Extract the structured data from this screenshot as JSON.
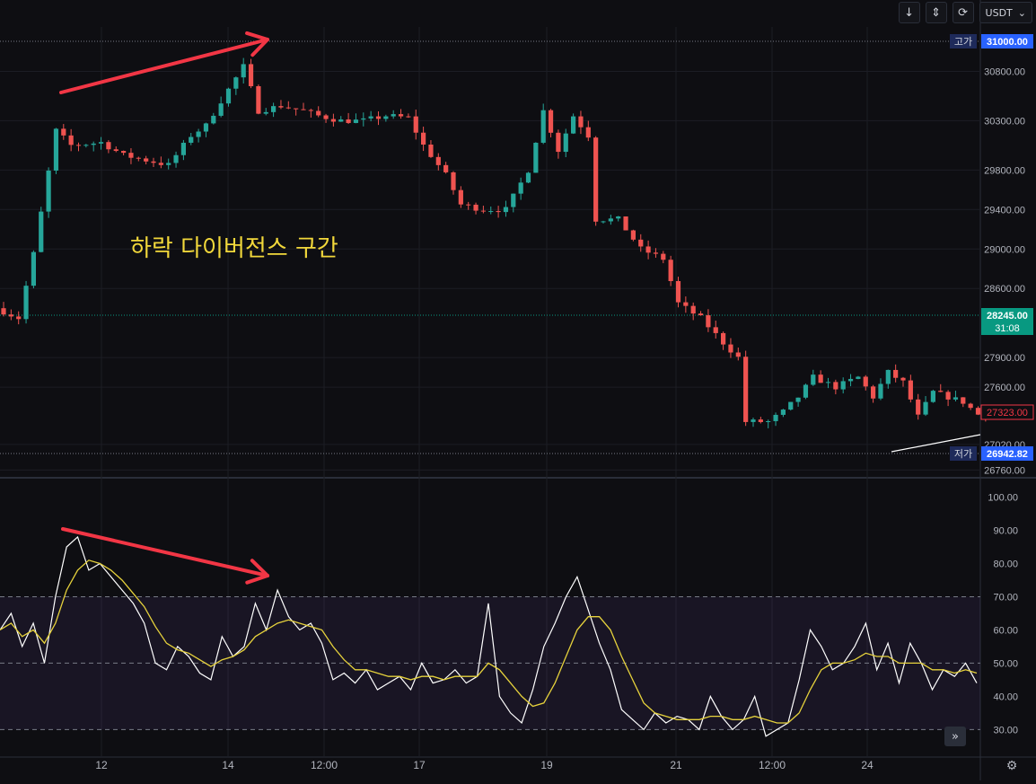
{
  "toolbar": {
    "down_icon": "arrow-down-icon",
    "expand_icon": "expand-vertical-icon",
    "refresh_icon": "refresh-icon",
    "currency": "USDT",
    "currency_caret": "⌄"
  },
  "annotation_text": "하락 다이버전스 구간",
  "colors": {
    "up": "#26a69a",
    "down": "#ef5350",
    "rsi": "#ffffff",
    "rsi_ma": "#e6d23c",
    "arrow": "#f23645",
    "annotation": "#f2d83b",
    "grid": "#1c1d24"
  },
  "chart_data": [
    {
      "type": "candlestick",
      "symbol_quote": "USDT",
      "y_ticks": [
        30800,
        30300,
        29800,
        29400,
        29000,
        28600,
        27900,
        27600,
        27020,
        26760
      ],
      "ylim": [
        26700,
        31250
      ],
      "x_ticks": [
        "12",
        "14",
        "12:00",
        "17",
        "19",
        "21",
        "12:00",
        "24"
      ],
      "price_labels": [
        {
          "tag": "고가",
          "value": "31000.00"
        },
        {
          "tag": "",
          "value": "28245.00",
          "extra": "31:08"
        },
        {
          "tag": "",
          "value": "27323.00"
        },
        {
          "tag": "저가",
          "value": "26942.82"
        }
      ],
      "price_path_keypoints": [
        [
          0,
          28400
        ],
        [
          3,
          28300
        ],
        [
          5,
          28950
        ],
        [
          8,
          30200
        ],
        [
          10,
          30050
        ],
        [
          14,
          30080
        ],
        [
          17,
          29950
        ],
        [
          20,
          29900
        ],
        [
          23,
          29850
        ],
        [
          26,
          30150
        ],
        [
          28,
          30250
        ],
        [
          30,
          30500
        ],
        [
          33,
          30850
        ],
        [
          35,
          30400
        ],
        [
          38,
          30450
        ],
        [
          41,
          30400
        ],
        [
          43,
          30350
        ],
        [
          46,
          30300
        ],
        [
          49,
          30300
        ],
        [
          52,
          30350
        ],
        [
          55,
          30330
        ],
        [
          57,
          30050
        ],
        [
          60,
          29750
        ],
        [
          62,
          29450
        ],
        [
          65,
          29400
        ],
        [
          68,
          29400
        ],
        [
          71,
          29800
        ],
        [
          73,
          30400
        ],
        [
          75,
          30000
        ],
        [
          77,
          30350
        ],
        [
          79,
          30150
        ],
        [
          80,
          29300
        ],
        [
          83,
          29300
        ],
        [
          86,
          29000
        ],
        [
          89,
          28900
        ],
        [
          91,
          28450
        ],
        [
          94,
          28300
        ],
        [
          97,
          28050
        ],
        [
          99,
          27900
        ],
        [
          100,
          27250
        ],
        [
          103,
          27250
        ],
        [
          105,
          27350
        ],
        [
          107,
          27500
        ],
        [
          109,
          27700
        ],
        [
          112,
          27600
        ],
        [
          115,
          27700
        ],
        [
          117,
          27500
        ],
        [
          119,
          27750
        ],
        [
          121,
          27650
        ],
        [
          123,
          27300
        ],
        [
          125,
          27550
        ],
        [
          127,
          27500
        ],
        [
          129,
          27450
        ],
        [
          131,
          27323
        ]
      ]
    },
    {
      "type": "line",
      "indicator": "RSI",
      "y_ticks": [
        100,
        90,
        80,
        70,
        60,
        50,
        40,
        30
      ],
      "ylim": [
        22,
        105
      ],
      "bands": [
        70,
        50,
        30
      ],
      "series": [
        {
          "key": "rsi",
          "values": [
            60,
            65,
            55,
            62,
            50,
            70,
            85,
            88,
            78,
            80,
            76,
            72,
            68,
            62,
            50,
            48,
            55,
            52,
            47,
            45,
            58,
            52,
            55,
            68,
            60,
            72,
            64,
            60,
            62,
            56,
            45,
            47,
            44,
            48,
            42,
            44,
            46,
            42,
            50,
            44,
            45,
            48,
            44,
            46,
            68,
            40,
            35,
            32,
            42,
            55,
            62,
            70,
            76,
            66,
            56,
            48,
            36,
            33,
            30,
            35,
            32,
            34,
            33,
            30,
            40,
            34,
            30,
            33,
            40,
            28,
            30,
            32,
            45,
            60,
            55,
            48,
            50,
            55,
            62,
            48,
            56,
            44,
            56,
            50,
            42,
            48,
            46,
            50,
            44
          ]
        },
        {
          "key": "rsi_ma",
          "values": [
            60,
            62,
            58,
            60,
            56,
            62,
            72,
            78,
            81,
            80,
            78,
            75,
            71,
            67,
            61,
            56,
            54,
            53,
            51,
            49,
            51,
            52,
            54,
            58,
            60,
            62,
            63,
            62,
            61,
            60,
            55,
            51,
            48,
            48,
            47,
            46,
            46,
            45,
            46,
            46,
            45,
            46,
            46,
            46,
            50,
            48,
            44,
            40,
            37,
            38,
            44,
            52,
            60,
            64,
            64,
            60,
            52,
            45,
            38,
            35,
            34,
            33,
            33,
            33,
            34,
            34,
            33,
            33,
            34,
            33,
            32,
            32,
            35,
            42,
            48,
            50,
            50,
            51,
            53,
            52,
            52,
            50,
            50,
            50,
            48,
            48,
            47,
            48,
            47
          ]
        }
      ]
    }
  ]
}
